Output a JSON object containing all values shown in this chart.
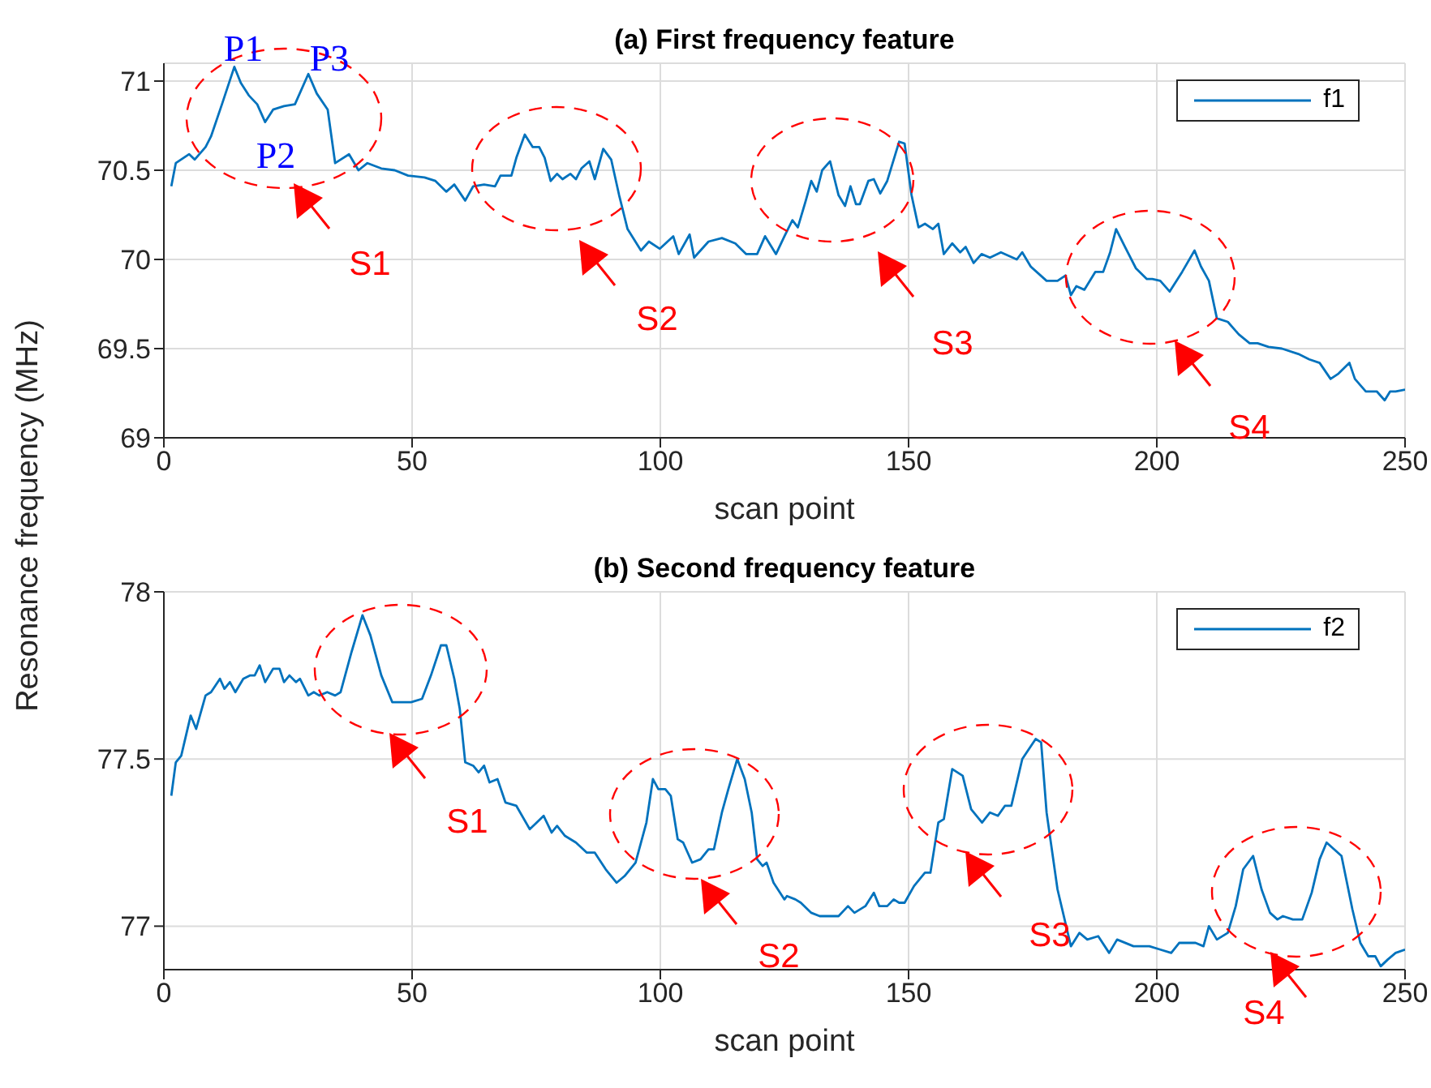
{
  "chart_data": [
    {
      "type": "line",
      "title": "(a) First frequency feature",
      "xlabel": "scan point",
      "ylabel": "Resonance frequency (MHz)",
      "xlim": [
        0,
        250
      ],
      "xticks": [
        0,
        50,
        100,
        150,
        200,
        250
      ],
      "ylim": [
        69,
        71.1
      ],
      "yticks": [
        69,
        69.5,
        70,
        70.5,
        71
      ],
      "grid": true,
      "legend": "top right",
      "marker": "none",
      "line_style": "solid",
      "x": [
        1.5,
        2.4,
        5.1,
        6.2,
        8.4,
        9.5,
        11.7,
        14.2,
        15.5,
        17.1,
        18.8,
        20.4,
        22,
        24.2,
        26.4,
        29.1,
        30.8,
        33,
        34.5,
        35.6,
        37.3,
        39.2,
        41,
        43.8,
        46.5,
        49.2,
        52.5,
        54.7,
        56.9,
        58.5,
        60.7,
        62.3,
        64.5,
        66.7,
        67.8,
        70,
        71,
        72.7,
        74.3,
        75.6,
        76.7,
        77.9,
        79.2,
        80.3,
        81.9,
        83,
        84.1,
        85.7,
        86.8,
        88.5,
        90.1,
        91.7,
        93.4,
        96.1,
        97.7,
        99.9,
        102.6,
        103.7,
        105.9,
        106.8,
        109.7,
        112.4,
        115.1,
        117.3,
        119.5,
        121.1,
        123.3,
        125,
        126.6,
        127.7,
        129.3,
        130.4,
        131.5,
        132.6,
        134.2,
        135.9,
        137.2,
        138.3,
        139.4,
        140.2,
        141.9,
        143,
        144.3,
        145.7,
        148.1,
        149.2,
        150.6,
        152,
        153.3,
        154.9,
        156,
        157.1,
        158.8,
        160.4,
        161.5,
        163.1,
        164.7,
        166.4,
        168.6,
        171.8,
        172.9,
        174.6,
        177.8,
        180,
        181.6,
        182.7,
        183.8,
        185.4,
        187.6,
        189.2,
        190.6,
        191.8,
        193.6,
        195.8,
        198,
        199.1,
        200.7,
        202.6,
        205.1,
        207.6,
        208.9,
        210.5,
        212.1,
        214.3,
        216.5,
        218.7,
        220.3,
        222.5,
        225.2,
        228.5,
        230.7,
        232.8,
        235,
        236.6,
        238.8,
        239.9,
        242.1,
        244.3,
        245.9,
        247,
        248.1,
        250
      ],
      "series": [
        {
          "name": "f1",
          "color": "#0072bd",
          "values": [
            70.41,
            70.54,
            70.59,
            70.56,
            70.63,
            70.69,
            70.87,
            71.08,
            70.99,
            70.92,
            70.87,
            70.77,
            70.84,
            70.86,
            70.87,
            71.04,
            70.93,
            70.84,
            70.54,
            70.56,
            70.59,
            70.5,
            70.54,
            70.51,
            70.5,
            70.47,
            70.46,
            70.44,
            70.38,
            70.42,
            70.33,
            70.41,
            70.42,
            70.41,
            70.47,
            70.47,
            70.57,
            70.7,
            70.63,
            70.63,
            70.57,
            70.44,
            70.48,
            70.45,
            70.48,
            70.45,
            70.51,
            70.55,
            70.45,
            70.62,
            70.56,
            70.36,
            70.17,
            70.05,
            70.1,
            70.06,
            70.13,
            70.03,
            70.14,
            70.01,
            70.1,
            70.12,
            70.09,
            70.03,
            70.03,
            70.13,
            70.03,
            70.13,
            70.22,
            70.18,
            70.33,
            70.44,
            70.38,
            70.5,
            70.55,
            70.36,
            70.3,
            70.41,
            70.31,
            70.31,
            70.44,
            70.45,
            70.37,
            70.44,
            70.66,
            70.65,
            70.36,
            70.18,
            70.2,
            70.17,
            70.2,
            70.03,
            70.09,
            70.04,
            70.07,
            69.98,
            70.03,
            70.01,
            70.04,
            70,
            70.04,
            69.96,
            69.88,
            69.88,
            69.91,
            69.8,
            69.85,
            69.83,
            69.93,
            69.93,
            70.04,
            70.17,
            70.07,
            69.95,
            69.89,
            69.89,
            69.88,
            69.82,
            69.93,
            70.05,
            69.96,
            69.88,
            69.67,
            69.65,
            69.58,
            69.53,
            69.53,
            69.51,
            69.5,
            69.47,
            69.44,
            69.42,
            69.33,
            69.36,
            69.42,
            69.33,
            69.26,
            69.26,
            69.21,
            69.26,
            69.26,
            69.27
          ]
        }
      ],
      "annotations": [
        "S1",
        "S2",
        "S3",
        "S4",
        "P1",
        "P2",
        "P3"
      ]
    },
    {
      "type": "line",
      "title": "(b) Second frequency feature",
      "xlabel": "scan point",
      "xlim": [
        0,
        250
      ],
      "xticks": [
        0,
        50,
        100,
        150,
        200,
        250
      ],
      "ylim": [
        76.87,
        78
      ],
      "yticks": [
        77,
        77.5,
        78
      ],
      "grid": true,
      "legend": "top right",
      "marker": "none",
      "line_style": "solid",
      "x": [
        1.5,
        2.4,
        3.5,
        5.4,
        6.5,
        8.4,
        9.5,
        11.3,
        12.2,
        13.3,
        14.4,
        16,
        17.4,
        18.3,
        19.3,
        20.4,
        22,
        23.3,
        24.2,
        25.3,
        26.6,
        27.4,
        29.1,
        30.2,
        31.3,
        32.9,
        34.5,
        35.6,
        37.8,
        40,
        41.6,
        43.8,
        46,
        47.6,
        49.8,
        52,
        53.8,
        55.8,
        56.9,
        58.5,
        59.6,
        60.7,
        62.3,
        63.4,
        64.5,
        65.6,
        67.2,
        68.8,
        71,
        73.7,
        76.5,
        78.1,
        79.2,
        80.8,
        83,
        85.2,
        86.8,
        89,
        91.2,
        92.8,
        95,
        97.2,
        98.5,
        99.6,
        101,
        102.1,
        103.5,
        104.6,
        106.4,
        108.1,
        109.7,
        110.8,
        112.4,
        113.7,
        115.5,
        117,
        118.4,
        119.5,
        120.6,
        121.4,
        122.8,
        125,
        125.5,
        127.2,
        128.3,
        130.4,
        132.1,
        133.2,
        134.2,
        135.9,
        137.8,
        139.1,
        141.3,
        143,
        144.1,
        145.7,
        147,
        148.1,
        149.2,
        151.1,
        153.3,
        154.4,
        156,
        157.1,
        158.8,
        160.9,
        162.6,
        164.8,
        166.4,
        168,
        169.4,
        170.7,
        172.9,
        175.6,
        176.7,
        177.8,
        180,
        182.7,
        184.4,
        186,
        188.2,
        190.4,
        192,
        195.3,
        198.5,
        200.7,
        202.9,
        204.5,
        206.1,
        207.8,
        209.4,
        210.5,
        212.1,
        214.3,
        215.9,
        217.4,
        219.4,
        221.1,
        222.8,
        224.3,
        225.4,
        227.4,
        229.3,
        231.2,
        232.8,
        234.2,
        237.2,
        239.4,
        241,
        242.6,
        244,
        245.1,
        246.5,
        248.1,
        250
      ],
      "series": [
        {
          "name": "f2",
          "color": "#0072bd",
          "values": [
            77.39,
            77.49,
            77.51,
            77.63,
            77.59,
            77.69,
            77.7,
            77.74,
            77.71,
            77.73,
            77.7,
            77.74,
            77.75,
            77.75,
            77.78,
            77.73,
            77.77,
            77.77,
            77.73,
            77.75,
            77.73,
            77.74,
            77.69,
            77.7,
            77.69,
            77.7,
            77.69,
            77.7,
            77.82,
            77.93,
            77.87,
            77.75,
            77.67,
            77.67,
            77.67,
            77.68,
            77.75,
            77.84,
            77.84,
            77.74,
            77.65,
            77.49,
            77.48,
            77.46,
            77.48,
            77.43,
            77.44,
            77.37,
            77.36,
            77.29,
            77.33,
            77.28,
            77.3,
            77.27,
            77.25,
            77.22,
            77.22,
            77.17,
            77.13,
            77.15,
            77.19,
            77.31,
            77.44,
            77.41,
            77.41,
            77.39,
            77.26,
            77.25,
            77.19,
            77.2,
            77.23,
            77.23,
            77.34,
            77.41,
            77.5,
            77.44,
            77.34,
            77.2,
            77.18,
            77.19,
            77.13,
            77.08,
            77.09,
            77.08,
            77.07,
            77.04,
            77.03,
            77.03,
            77.03,
            77.03,
            77.06,
            77.04,
            77.06,
            77.1,
            77.06,
            77.06,
            77.08,
            77.07,
            77.07,
            77.12,
            77.16,
            77.16,
            77.31,
            77.32,
            77.47,
            77.45,
            77.35,
            77.31,
            77.34,
            77.33,
            77.36,
            77.36,
            77.5,
            77.56,
            77.55,
            77.34,
            77.11,
            76.94,
            76.98,
            76.96,
            76.97,
            76.92,
            76.96,
            76.94,
            76.94,
            76.93,
            76.92,
            76.95,
            76.95,
            76.95,
            76.94,
            77,
            76.96,
            76.98,
            77.06,
            77.17,
            77.21,
            77.11,
            77.04,
            77.02,
            77.03,
            77.02,
            77.02,
            77.1,
            77.2,
            77.25,
            77.21,
            77.05,
            76.95,
            76.91,
            76.91,
            76.88,
            76.9,
            76.92,
            76.93
          ]
        }
      ],
      "annotations": [
        "S1",
        "S2",
        "S3",
        "S4"
      ]
    }
  ]
}
